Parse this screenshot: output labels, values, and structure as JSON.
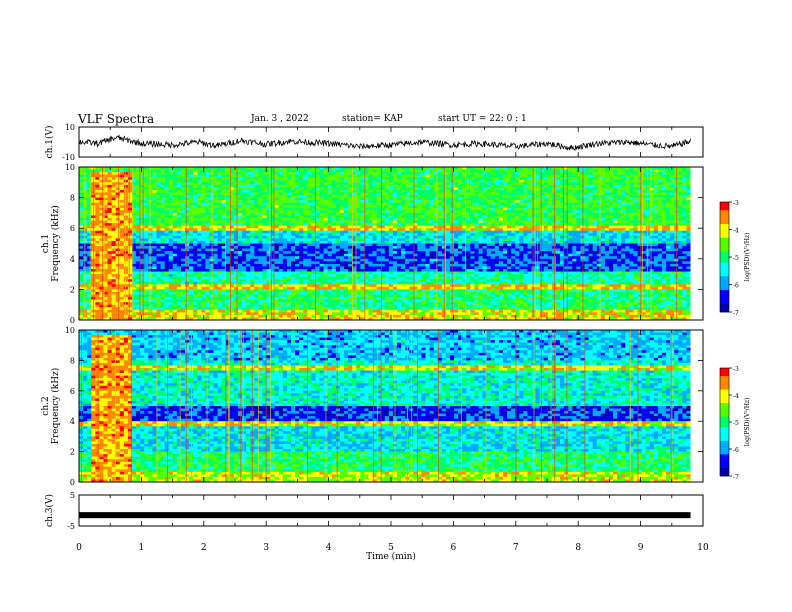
{
  "header": {
    "title": "VLF Spectra",
    "date": "Jan. 3 , 2022",
    "station": "station= KAP",
    "start": "start UT = 22: 0 : 1"
  },
  "chart_data": {
    "type": "heatmap",
    "xlabel": "Time (min)",
    "xlim": [
      0,
      10
    ],
    "xticks": [
      "0",
      "1",
      "2",
      "3",
      "4",
      "5",
      "6",
      "7",
      "8",
      "9",
      "10"
    ],
    "panels": [
      {
        "id": "ch1_waveform",
        "type": "line",
        "ylabel": "ch.1(V)",
        "ylim": [
          -10,
          10
        ],
        "yticks": [
          "10",
          "-10"
        ],
        "series_color": "#000000",
        "waveform_profile": [
          [
            0,
            0.2
          ],
          [
            0.3,
            -1
          ],
          [
            0.6,
            3
          ],
          [
            1.0,
            -1
          ],
          [
            1.5,
            -2
          ],
          [
            1.9,
            0
          ],
          [
            2.2,
            -2.5
          ],
          [
            2.6,
            1
          ],
          [
            3.0,
            -1.5
          ],
          [
            3.4,
            0.5
          ],
          [
            4.0,
            -1
          ],
          [
            4.5,
            -3
          ],
          [
            5.0,
            -2
          ],
          [
            5.5,
            0
          ],
          [
            6.0,
            -2
          ],
          [
            6.4,
            -1
          ],
          [
            7.0,
            -3
          ],
          [
            7.5,
            -1
          ],
          [
            7.9,
            -4
          ],
          [
            8.3,
            -1
          ],
          [
            8.8,
            0
          ],
          [
            9.2,
            -2
          ],
          [
            9.5,
            -3
          ],
          [
            9.8,
            0.5
          ]
        ]
      },
      {
        "id": "ch1_spectrogram",
        "type": "heatmap",
        "ylabel": "ch.1 Frequency (kHz)",
        "ylim": [
          0,
          10
        ],
        "yticks": [
          "0",
          "2",
          "4",
          "6",
          "8",
          "10"
        ],
        "colorbar": {
          "label": "log(PSD)(V²/Hz)",
          "range": [
            -7,
            -3
          ],
          "ticks": [
            "-3",
            "-4",
            "-5",
            "-6",
            "-7"
          ]
        }
      },
      {
        "id": "ch2_spectrogram",
        "type": "heatmap",
        "ylabel": "ch.2 Frequency (kHz)",
        "ylim": [
          0,
          10
        ],
        "yticks": [
          "0",
          "2",
          "4",
          "6",
          "8",
          "10"
        ],
        "colorbar": {
          "label": "log(PSD)(V²/Hz)",
          "range": [
            -7,
            -3
          ],
          "ticks": [
            "-3",
            "-4",
            "-5",
            "-6",
            "-7"
          ]
        }
      },
      {
        "id": "ch3_waveform",
        "type": "line",
        "ylabel": "ch.3(V)",
        "ylim": [
          -5,
          5
        ],
        "yticks": [
          "5",
          "-5"
        ],
        "constant_value": -1.5
      }
    ],
    "data_end_min": 9.8,
    "colormap": [
      "#0000aa",
      "#0000ff",
      "#00aaff",
      "#00ffff",
      "#00ff66",
      "#55ff00",
      "#ffff00",
      "#ff8800",
      "#ff0000"
    ]
  }
}
